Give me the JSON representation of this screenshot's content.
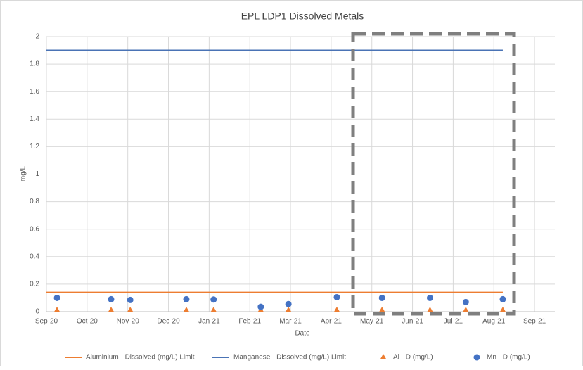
{
  "chart_data": {
    "type": "scatter",
    "title": "EPL LDP1 Dissolved Metals",
    "x_label": "Date",
    "y_label": "mg/L",
    "xlim": [
      0,
      12.5
    ],
    "xticks": [
      {
        "value": 0,
        "label": "Sep-20"
      },
      {
        "value": 1,
        "label": "Oct-20"
      },
      {
        "value": 2,
        "label": "Nov-20"
      },
      {
        "value": 3,
        "label": "Dec-20"
      },
      {
        "value": 4,
        "label": "Jan-21"
      },
      {
        "value": 5,
        "label": "Feb-21"
      },
      {
        "value": 6,
        "label": "Mar-21"
      },
      {
        "value": 7,
        "label": "Apr-21"
      },
      {
        "value": 8,
        "label": "May-21"
      },
      {
        "value": 9,
        "label": "Jun-21"
      },
      {
        "value": 10,
        "label": "Jul-21"
      },
      {
        "value": 11,
        "label": "Aug-21"
      },
      {
        "value": 12,
        "label": "Sep-21"
      }
    ],
    "ylim": [
      0,
      2
    ],
    "yticks": [
      0,
      0.2,
      0.4,
      0.6,
      0.8,
      1,
      1.2,
      1.4,
      1.6,
      1.8,
      2
    ],
    "grid": true,
    "legend": "bottom",
    "series": [
      {
        "name": "Aluminium - Dissolved (mg/L) Limit",
        "color": "#ED7D31",
        "mark": "line",
        "x": [
          0,
          11.22
        ],
        "values": [
          0.14,
          0.14
        ]
      },
      {
        "name": "Manganese - Dissolved (mg/L) Limit",
        "color": "#4A73B5",
        "mark": "line",
        "x": [
          0,
          11.22
        ],
        "values": [
          1.9,
          1.9
        ]
      },
      {
        "name": "Al - D (mg/L)",
        "color": "#ED7D31",
        "mark": "triangle",
        "x": [
          0.26,
          1.59,
          2.06,
          3.44,
          4.11,
          5.27,
          5.95,
          7.14,
          8.25,
          9.43,
          10.31,
          11.22
        ],
        "values": [
          0.01,
          0.01,
          0.01,
          0.01,
          0.01,
          0.01,
          0.01,
          0.01,
          0.01,
          0.01,
          0.01,
          0.01
        ]
      },
      {
        "name": "Mn - D (mg/L)",
        "color": "#4472C4",
        "mark": "circle",
        "x": [
          0.26,
          1.59,
          2.06,
          3.44,
          4.11,
          5.27,
          5.95,
          7.14,
          8.25,
          9.43,
          10.31,
          11.22
        ],
        "values": [
          0.1,
          0.09,
          0.085,
          0.09,
          0.088,
          0.035,
          0.055,
          0.105,
          0.1,
          0.1,
          0.07,
          0.09
        ]
      }
    ]
  }
}
